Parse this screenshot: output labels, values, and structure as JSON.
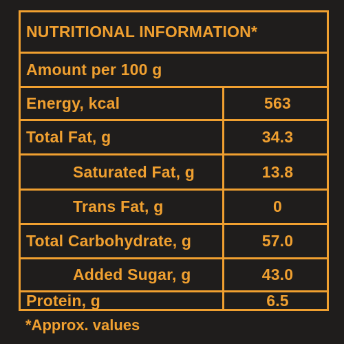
{
  "title": "NUTRITIONAL INFORMATION*",
  "serving": "Amount per 100 g",
  "rows": [
    {
      "label": "Energy, kcal",
      "value": "563"
    },
    {
      "label": "Total Fat, g",
      "value": "34.3"
    },
    {
      "label": "Saturated Fat, g",
      "value": "13.8"
    },
    {
      "label": "Trans Fat, g",
      "value": "0"
    },
    {
      "label": "Total Carbohydrate, g",
      "value": "57.0"
    },
    {
      "label": "Added Sugar, g",
      "value": "43.0"
    },
    {
      "label": "Protein, g",
      "value": "6.5"
    }
  ],
  "footnote": "*Approx. values",
  "colors": {
    "background": "#1f1d1c",
    "accent": "#f0a030"
  }
}
